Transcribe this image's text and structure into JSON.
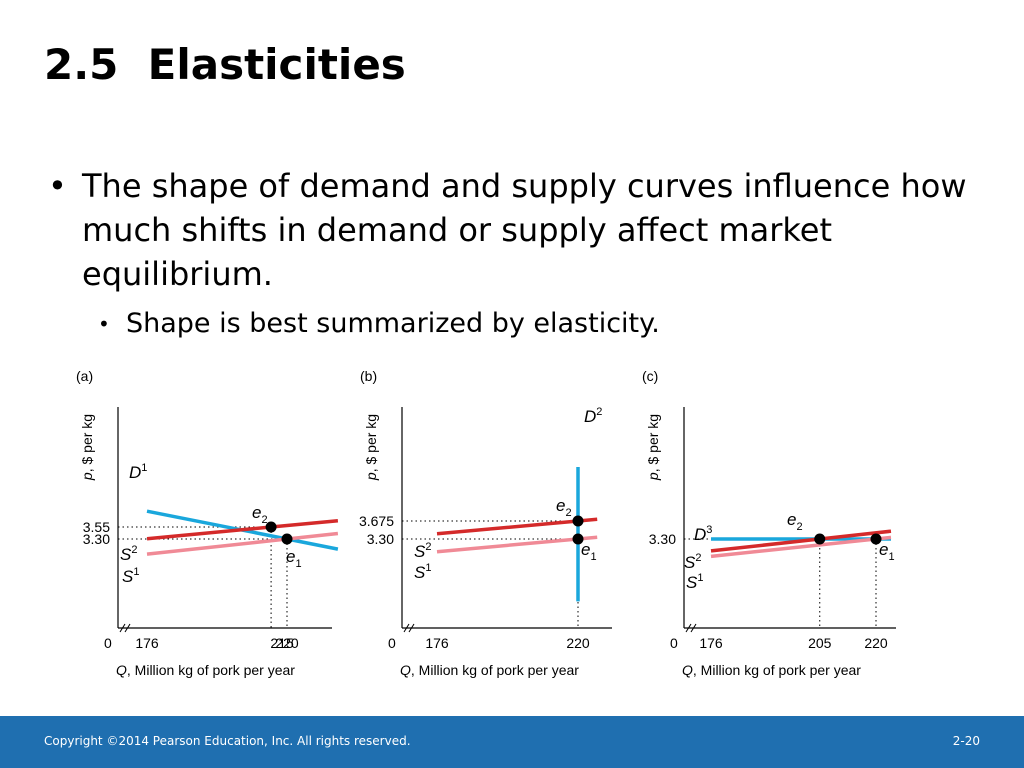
{
  "slide": {
    "title": "2.5  Elasticities",
    "bullet": "The shape of demand and supply curves influence how much shifts in demand or supply affect market equilibrium.",
    "subbullet": "Shape is best summarized by elasticity.",
    "bullet_symbol": "•",
    "footer": "Copyright ©2014 Pearson Education, Inc. All rights reserved.",
    "page_number": "2-20"
  },
  "colors": {
    "demand": "#1aa7dc",
    "supply_new": "#d42a2a",
    "supply_old": "#f08a96",
    "footer_bg": "#1f6fb0"
  },
  "chart_data": [
    {
      "type": "line",
      "panel_label": "(a)",
      "xlabel": "Q, Million kg of pork per year",
      "ylabel": "p, $ per kg",
      "origin_label": "0",
      "x_ticks": [
        "176",
        "215",
        "220"
      ],
      "y_ticks": [
        "3.55",
        "3.30"
      ],
      "series": [
        {
          "name": "D1",
          "label": "D",
          "sup": "1",
          "role": "demand",
          "points": [
            [
              176,
              3.88
            ],
            [
              220,
              3.3
            ],
            [
              236,
              3.09
            ]
          ]
        },
        {
          "name": "S2",
          "label": "S",
          "sup": "2",
          "role": "supply_new",
          "points": [
            [
              176,
              3.305
            ],
            [
              215,
              3.55
            ],
            [
              236,
              3.682
            ]
          ]
        },
        {
          "name": "S1",
          "label": "S",
          "sup": "1",
          "role": "supply_old",
          "points": [
            [
              176,
              2.986
            ],
            [
              220,
              3.3
            ],
            [
              236,
              3.414
            ]
          ]
        }
      ],
      "equilibria": [
        {
          "label": "e",
          "sub": "2",
          "x": 215,
          "y": 3.55
        },
        {
          "label": "e",
          "sub": "1",
          "x": 220,
          "y": 3.3
        }
      ]
    },
    {
      "type": "line",
      "panel_label": "(b)",
      "xlabel": "Q, Million kg of pork per year",
      "ylabel": "p, $ per kg",
      "origin_label": "0",
      "x_ticks": [
        "176",
        "220"
      ],
      "y_ticks": [
        "3.675",
        "3.30"
      ],
      "series": [
        {
          "name": "D2",
          "label": "D",
          "sup": "2",
          "role": "demand",
          "points": [
            [
              220,
              2.0
            ],
            [
              220,
              4.8
            ]
          ]
        },
        {
          "name": "S2",
          "label": "S",
          "sup": "2",
          "role": "supply_new",
          "points": [
            [
              176,
              3.408
            ],
            [
              220,
              3.675
            ],
            [
              226,
              3.711
            ]
          ]
        },
        {
          "name": "S1",
          "label": "S",
          "sup": "1",
          "role": "supply_old",
          "points": [
            [
              176,
              3.036
            ],
            [
              220,
              3.3
            ],
            [
              226,
              3.336
            ]
          ]
        }
      ],
      "equilibria": [
        {
          "label": "e",
          "sub": "2",
          "x": 220,
          "y": 3.675
        },
        {
          "label": "e",
          "sub": "1",
          "x": 220,
          "y": 3.3
        }
      ]
    },
    {
      "type": "line",
      "panel_label": "(c)",
      "xlabel": "Q, Million kg of pork per year",
      "ylabel": "p, $ per kg",
      "origin_label": "0",
      "x_ticks": [
        "176",
        "205",
        "220"
      ],
      "y_ticks": [
        "3.30"
      ],
      "series": [
        {
          "name": "D3",
          "label": "D",
          "sup": "3",
          "role": "demand",
          "points": [
            [
              176,
              3.3
            ],
            [
              224,
              3.3
            ]
          ]
        },
        {
          "name": "S2",
          "label": "S",
          "sup": "2",
          "role": "supply_new",
          "points": [
            [
              176,
              3.052
            ],
            [
              205,
              3.3
            ],
            [
              224,
              3.463
            ]
          ]
        },
        {
          "name": "S1",
          "label": "S",
          "sup": "1",
          "role": "supply_old",
          "points": [
            [
              176,
              2.937
            ],
            [
              220,
              3.3
            ],
            [
              224,
              3.333
            ]
          ]
        }
      ],
      "equilibria": [
        {
          "label": "e",
          "sub": "2",
          "x": 205,
          "y": 3.3
        },
        {
          "label": "e",
          "sub": "1",
          "x": 220,
          "y": 3.3
        }
      ]
    }
  ]
}
